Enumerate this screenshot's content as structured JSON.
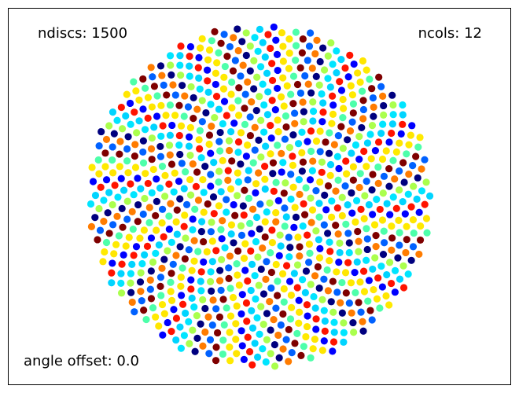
{
  "labels": {
    "ndiscs": "ndiscs: 1500",
    "ncols": "ncols: 12",
    "angle_offset": "angle offset: 0.0"
  },
  "chart_data": {
    "type": "scatter",
    "title": "",
    "xlabel": "",
    "ylabel": "",
    "axes_visible": false,
    "grid": false,
    "layout": "phyllotaxis (sunflower) spiral",
    "n_discs": 1500,
    "n_colors": 12,
    "angle_offset": 0.0,
    "visible_discs": 1000,
    "colormap": "jet",
    "colors": [
      "#00007f",
      "#0000ff",
      "#0061ff",
      "#00d4ff",
      "#4dffaa",
      "#aaff4d",
      "#ffe600",
      "#ff7c00",
      "#ff1300",
      "#7f0000",
      "#00e5ff",
      "#ffea00"
    ]
  }
}
